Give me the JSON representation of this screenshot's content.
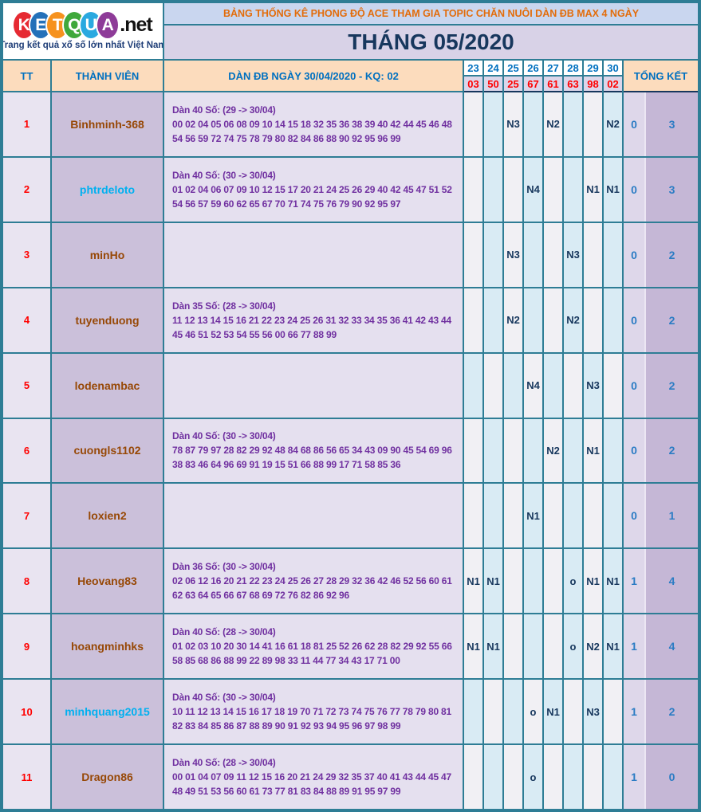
{
  "logo": {
    "letters": [
      {
        "ch": "K",
        "color": "#e62a32"
      },
      {
        "ch": "E",
        "color": "#2471b9"
      },
      {
        "ch": "T",
        "color": "#f6921e"
      },
      {
        "ch": "Q",
        "color": "#3fa83b"
      },
      {
        "ch": "U",
        "color": "#2aa9e0"
      },
      {
        "ch": "A",
        "color": "#8e3b98"
      }
    ],
    "suffix": ".net",
    "tagline": "Trang kết quả xổ số lớn nhất Việt Nam"
  },
  "header": {
    "title": "BẢNG THỐNG KÊ PHONG ĐỘ ACE THAM GIA TOPIC CHĂN NUÔI DÀN ĐB MAX 4 NGÀY",
    "month_title": "THÁNG 05/2020",
    "col_tt": "TT",
    "col_member": "THÀNH VIÊN",
    "col_dan": "DÀN ĐB NGÀY 30/04/2020 - KQ: 02",
    "col_total": "TỔNG KẾT",
    "day_numbers": [
      "23",
      "24",
      "25",
      "26",
      "27",
      "28",
      "29",
      "30"
    ],
    "day_results": [
      "03",
      "50",
      "25",
      "67",
      "61",
      "63",
      "98",
      "02"
    ]
  },
  "rows": [
    {
      "tt": "1",
      "name": "Binhminh-368",
      "name_color": "#974806",
      "dan_title": "Dàn 40 Số: (29 -> 30/04)",
      "dan_numbers": "00 02 04 05 06 08 09 10 14 15 18 32 35 36 38 39 40 42 44 45 46 48 54 56 59 72 74 75 78 79 80 82 84 86 88 90 92 95 96 99",
      "days": [
        "",
        "",
        "N3",
        "",
        "N2",
        "",
        "",
        "N2"
      ],
      "alt_start": false,
      "total_left": "0",
      "total_right": "3"
    },
    {
      "tt": "2",
      "name": "phtrdeloto",
      "name_color": "#00b0f0",
      "dan_title": "Dàn 40 Số: (30 -> 30/04)",
      "dan_numbers": "01 02 04 06 07 09 10 12 15 17 20 21 24 25 26 29 40 42 45 47 51 52 54 56 57 59 60 62 65 67 70 71 74 75 76 79 90 92 95 97",
      "days": [
        "",
        "",
        "",
        "N4",
        "",
        "",
        "N1",
        "N1"
      ],
      "alt_start": false,
      "total_left": "0",
      "total_right": "3"
    },
    {
      "tt": "3",
      "name": "minHo",
      "name_color": "#974806",
      "dan_title": "",
      "dan_numbers": "",
      "days": [
        "",
        "",
        "N3",
        "",
        "",
        "N3",
        "",
        ""
      ],
      "alt_start": false,
      "total_left": "0",
      "total_right": "2"
    },
    {
      "tt": "4",
      "name": "tuyenduong",
      "name_color": "#974806",
      "dan_title": "Dàn 35 Số: (28 -> 30/04)",
      "dan_numbers": "11 12 13 14 15 16 21 22 23 24 25 26 31 32 33 34 35 36 41 42 43 44 45 46 51 52 53 54 55 56 00 66 77 88 99",
      "days": [
        "",
        "",
        "N2",
        "",
        "",
        "N2",
        "",
        ""
      ],
      "alt_start": false,
      "total_left": "0",
      "total_right": "2"
    },
    {
      "tt": "5",
      "name": "lodenambac",
      "name_color": "#974806",
      "dan_title": "",
      "dan_numbers": "",
      "days": [
        "",
        "",
        "",
        "N4",
        "",
        "",
        "N3",
        ""
      ],
      "alt_start": true,
      "total_left": "0",
      "total_right": "2"
    },
    {
      "tt": "6",
      "name": "cuongls1102",
      "name_color": "#974806",
      "dan_title": "Dàn 40 Số: (30 -> 30/04)",
      "dan_numbers": "78 87 79 97 28 82 29 92 48 84 68 86 56 65 34 43 09 90 45 54 69 96 38 83 46 64 96 69 91 19 15 51 66 88 99 17 71 58 85 36",
      "days": [
        "",
        "",
        "",
        "",
        "N2",
        "",
        "N1",
        ""
      ],
      "alt_start": false,
      "total_left": "0",
      "total_right": "2"
    },
    {
      "tt": "7",
      "name": "loxien2",
      "name_color": "#974806",
      "dan_title": "",
      "dan_numbers": "",
      "days": [
        "",
        "",
        "",
        "N1",
        "",
        "",
        "",
        ""
      ],
      "alt_start": false,
      "total_left": "0",
      "total_right": "1"
    },
    {
      "tt": "8",
      "name": "Heovang83",
      "name_color": "#974806",
      "dan_title": "Dàn 36 Số: (30 -> 30/04)",
      "dan_numbers": "02 06 12 16 20 21 22 23 24 25 26 27 28 29 32 36 42 46 52 56 60 61 62 63 64 65 66 67 68 69 72 76 82 86 92 96",
      "days": [
        "N1",
        "N1",
        "",
        "",
        "",
        "o",
        "N1",
        "N1"
      ],
      "alt_start": false,
      "total_left": "1",
      "total_right": "4"
    },
    {
      "tt": "9",
      "name": "hoangminhks",
      "name_color": "#974806",
      "dan_title": "Dàn 40 Số: (28 -> 30/04)",
      "dan_numbers": "01 02 03 10 20 30 14 41 16 61 18 81 25 52 26 62 28 82 29 92 55 66 58 85 68 86 88 99 22 89 98 33 11 44 77 34 43 17 71 00",
      "days": [
        "N1",
        "N1",
        "",
        "",
        "",
        "o",
        "N2",
        "N1"
      ],
      "alt_start": false,
      "total_left": "1",
      "total_right": "4"
    },
    {
      "tt": "10",
      "name": "minhquang2015",
      "name_color": "#00b0f0",
      "dan_title": "Dàn 40 Số: (30 -> 30/04)",
      "dan_numbers": "10 11 12 13 14 15 16 17 18 19 70 71 72 73 74 75 76 77 78 79 80 81 82 83 84 85 86 87 88 89 90 91 92 93 94 95 96 97 98 99",
      "days": [
        "",
        "",
        "",
        "o",
        "N1",
        "",
        "N3",
        ""
      ],
      "alt_start": true,
      "total_left": "1",
      "total_right": "2"
    },
    {
      "tt": "11",
      "name": "Dragon86",
      "name_color": "#974806",
      "dan_title": "Dàn 40 Số: (28 -> 30/04)",
      "dan_numbers": "00 01 04 07 09 11 12 15 16 20 21 24 29 32 35 37 40 41 43 44 45 47 48 49 51 53 56 60 61 73 77 81 83 84 88 89 91 95 97 99",
      "days": [
        "",
        "",
        "",
        "o",
        "",
        "",
        "",
        ""
      ],
      "alt_start": false,
      "total_left": "1",
      "total_right": "0"
    }
  ]
}
